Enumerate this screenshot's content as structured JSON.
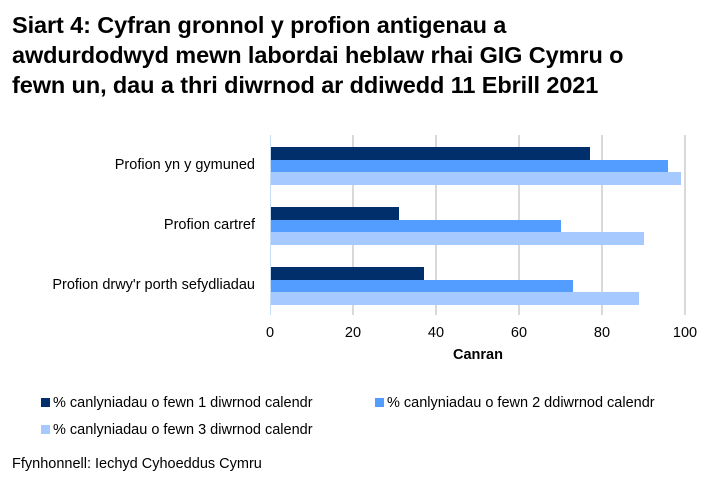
{
  "title": "Siart 4: Cyfran gronnol y profion antigenau a awdurdodwyd mewn labordai heblaw rhai GIG Cymru o fewn un, dau a thri diwrnod ar ddiwedd 11 Ebrill 2021",
  "title_lines": [
    "Siart 4: Cyfran gronnol y profion antigenau a",
    "awdurdodwyd mewn labordai heblaw rhai GIG Cymru o",
    "fewn un, dau a thri diwrnod ar ddiwedd 11 Ebrill 2021"
  ],
  "source": "Ffynhonnell: Iechyd Cyhoeddus Cymru",
  "colors": {
    "series1": "#002f6c",
    "series2": "#529dff",
    "series3": "#a6caff",
    "gridline": "#d9d9d9"
  },
  "chart_data": {
    "type": "bar",
    "orientation": "horizontal",
    "title": "Siart 4: Cyfran gronnol y profion antigenau a awdurdodwyd mewn labordai heblaw rhai GIG Cymru o fewn un, dau a thri diwrnod ar ddiwedd 11 Ebrill 2021",
    "categories": [
      "Profion yn y gymuned",
      "Profion cartref",
      "Profion drwy'r porth sefydliadau"
    ],
    "series": [
      {
        "name": "% canlyniadau o fewn 1 diwrnod calendr",
        "color": "#002f6c",
        "values": [
          77,
          31,
          37
        ]
      },
      {
        "name": "% canlyniadau o fewn 2 ddiwrnod calendr",
        "color": "#529dff",
        "values": [
          96,
          70,
          73
        ]
      },
      {
        "name": "% canlyniadau o fewn 3 diwrnod calendr",
        "color": "#a6caff",
        "values": [
          99,
          90,
          89
        ]
      }
    ],
    "xlabel": "Canran",
    "ylabel": "",
    "xlim": [
      0,
      100
    ],
    "xticks": [
      "0",
      "20",
      "40",
      "60",
      "80",
      "100"
    ],
    "grid": true,
    "legend_position": "bottom"
  }
}
